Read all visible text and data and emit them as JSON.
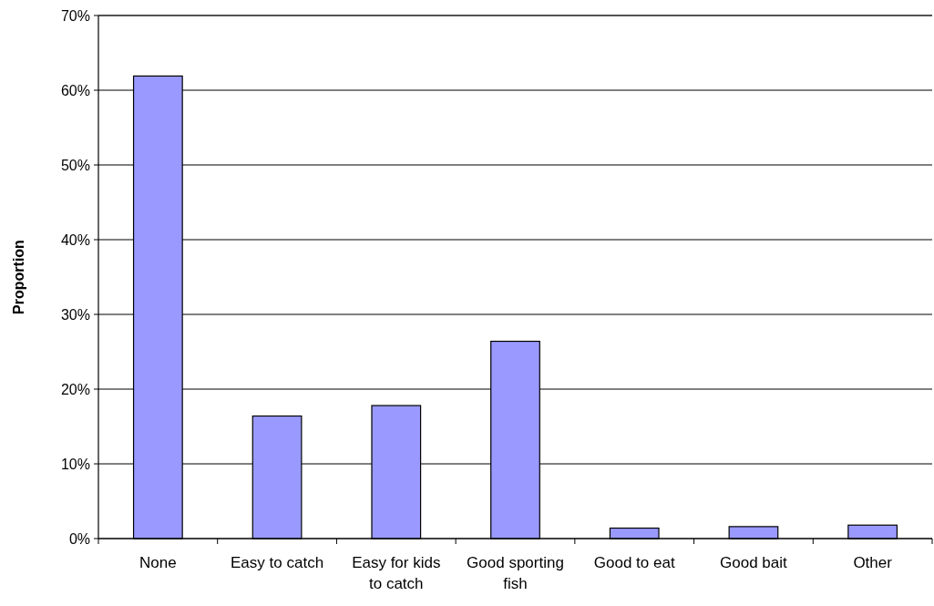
{
  "chart_data": {
    "type": "bar",
    "ylabel": "Proportion",
    "categories": [
      "None",
      "Easy to catch",
      "Easy for kids to catch",
      "Good sporting fish",
      "Good to eat",
      "Good bait",
      "Other"
    ],
    "values": [
      61.9,
      16.4,
      17.8,
      26.4,
      1.4,
      1.6,
      1.8
    ],
    "color": "#9999ff",
    "ylim": [
      0,
      70
    ],
    "yticks": [
      {
        "value": 0,
        "label": "0%"
      },
      {
        "value": 10,
        "label": "10%"
      },
      {
        "value": 20,
        "label": "20%"
      },
      {
        "value": 30,
        "label": "30%"
      },
      {
        "value": 40,
        "label": "40%"
      },
      {
        "value": 50,
        "label": "50%"
      },
      {
        "value": 60,
        "label": "60%"
      },
      {
        "value": 70,
        "label": "70%"
      }
    ],
    "grid": "y"
  }
}
